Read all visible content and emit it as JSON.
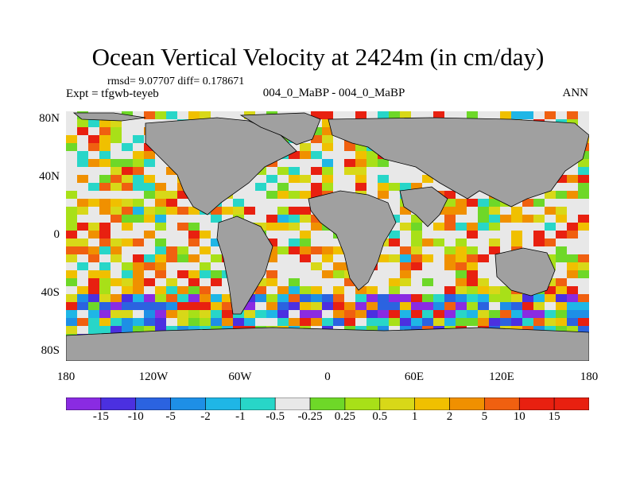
{
  "title": "Ocean Vertical Velocity at 2424m (in cm/day)",
  "stats": "rmsd= 9.07707 diff= 0.178671",
  "expt": "Expt = tfgwb-teyeb",
  "case": "004_0_MaBP - 004_0_MaBP",
  "season": "ANN",
  "map": {
    "land_color": "#a0a0a0",
    "lat_ticks": [
      "80N",
      "40N",
      "0",
      "40S",
      "80S"
    ],
    "lon_ticks": [
      "180",
      "120W",
      "60W",
      "0",
      "60E",
      "120E",
      "180"
    ]
  },
  "colorbar": {
    "colors": [
      "#8a2be2",
      "#4b30e0",
      "#2b63e0",
      "#1e8fe6",
      "#1fb6e6",
      "#28d6c8",
      "#e8e8e8",
      "#6ed828",
      "#a8e018",
      "#d8d818",
      "#f0c000",
      "#f09000",
      "#f06010",
      "#e82010"
    ],
    "labels": [
      "-15",
      "-10",
      "-5",
      "-2",
      "-1",
      "-0.5",
      "-0.25",
      "0.25",
      "0.5",
      "1",
      "2",
      "5",
      "10",
      "15"
    ]
  }
}
